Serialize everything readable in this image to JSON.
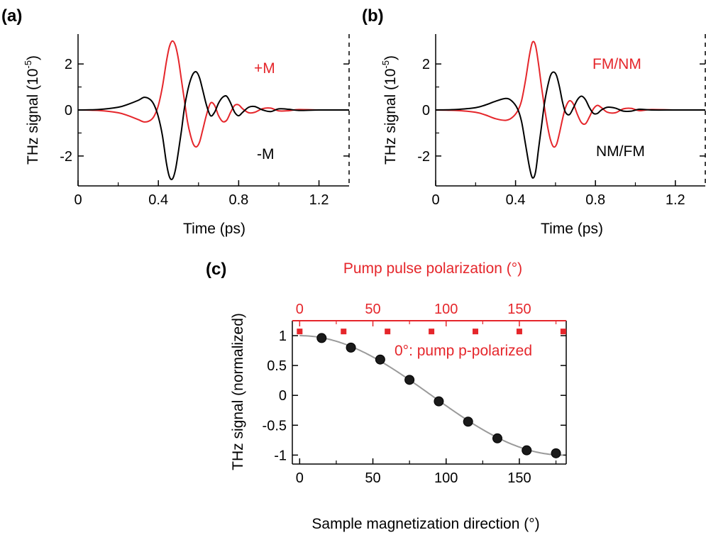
{
  "colors": {
    "black": "#000000",
    "red": "#e5262b",
    "fit": "#9a9a9a"
  },
  "panels": [
    {
      "label": "(a)"
    },
    {
      "label": "(b)"
    },
    {
      "label": "(c)"
    }
  ],
  "chart_data": [
    {
      "id": "a",
      "type": "line",
      "xlabel": "Time (ps)",
      "ylabel": "THz signal (10",
      "ylabel_exp": "-5",
      "ylabel_close": ")",
      "xlim": [
        0,
        1.35
      ],
      "ylim": [
        -3.3,
        3.3
      ],
      "xticks": [
        0,
        0.4,
        0.8,
        1.2
      ],
      "xtick_labels": [
        "0",
        "0.4",
        "0.8",
        "1.2"
      ],
      "yticks": [
        -2,
        0,
        2
      ],
      "ytick_labels": [
        "-2",
        "0",
        "2"
      ],
      "series": [
        {
          "name": "+M",
          "color": "red",
          "x": [
            0.0,
            0.1,
            0.2,
            0.25,
            0.3,
            0.33,
            0.36,
            0.38,
            0.4,
            0.42,
            0.44,
            0.455,
            0.47,
            0.485,
            0.5,
            0.515,
            0.53,
            0.545,
            0.56,
            0.575,
            0.59,
            0.605,
            0.62,
            0.64,
            0.66,
            0.68,
            0.7,
            0.72,
            0.74,
            0.76,
            0.78,
            0.8,
            0.82,
            0.85,
            0.88,
            0.92,
            0.96,
            1.0,
            1.05,
            1.1,
            1.2,
            1.35
          ],
          "y": [
            0.0,
            -0.02,
            -0.12,
            -0.25,
            -0.42,
            -0.52,
            -0.45,
            -0.25,
            0.2,
            1.0,
            2.1,
            2.75,
            3.0,
            2.8,
            2.2,
            1.3,
            0.4,
            -0.5,
            -1.1,
            -1.5,
            -1.6,
            -1.4,
            -0.9,
            -0.2,
            0.3,
            0.2,
            -0.25,
            -0.5,
            -0.45,
            -0.1,
            0.2,
            0.22,
            0.05,
            -0.12,
            -0.1,
            0.06,
            0.08,
            -0.04,
            -0.03,
            0.02,
            0.0,
            0.0
          ]
        },
        {
          "name": "-M",
          "color": "black",
          "x": [
            0.0,
            0.1,
            0.2,
            0.25,
            0.3,
            0.33,
            0.36,
            0.38,
            0.4,
            0.42,
            0.44,
            0.455,
            0.47,
            0.485,
            0.5,
            0.515,
            0.53,
            0.545,
            0.56,
            0.575,
            0.59,
            0.605,
            0.62,
            0.64,
            0.66,
            0.68,
            0.7,
            0.72,
            0.74,
            0.76,
            0.78,
            0.8,
            0.82,
            0.85,
            0.88,
            0.92,
            0.96,
            1.0,
            1.05,
            1.1,
            1.2,
            1.35
          ],
          "y": [
            0.0,
            0.02,
            0.12,
            0.25,
            0.42,
            0.55,
            0.45,
            0.2,
            -0.3,
            -1.1,
            -2.3,
            -2.9,
            -3.0,
            -2.6,
            -1.8,
            -0.9,
            0.1,
            0.8,
            1.3,
            1.6,
            1.65,
            1.4,
            0.9,
            0.2,
            -0.25,
            -0.1,
            0.3,
            0.55,
            0.6,
            0.3,
            -0.1,
            -0.25,
            -0.1,
            0.12,
            0.15,
            0.0,
            -0.07,
            0.05,
            0.03,
            -0.02,
            0.0,
            0.0
          ]
        }
      ],
      "annotations": [
        {
          "text": "+M",
          "color": "red"
        },
        {
          "text": "-M",
          "color": "black"
        }
      ]
    },
    {
      "id": "b",
      "type": "line",
      "xlabel": "Time (ps)",
      "ylabel": "THz signal (10",
      "ylabel_exp": "-5",
      "ylabel_close": ")",
      "xlim": [
        0,
        1.35
      ],
      "ylim": [
        -3.3,
        3.3
      ],
      "xticks": [
        0,
        0.4,
        0.8,
        1.2
      ],
      "xtick_labels": [
        "0",
        "0.4",
        "0.8",
        "1.2"
      ],
      "yticks": [
        -2,
        0,
        2
      ],
      "ytick_labels": [
        "-2",
        "0",
        "2"
      ],
      "series": [
        {
          "name": "FM/NM",
          "color": "red",
          "x": [
            0.0,
            0.1,
            0.2,
            0.25,
            0.3,
            0.35,
            0.38,
            0.41,
            0.43,
            0.45,
            0.47,
            0.485,
            0.5,
            0.515,
            0.53,
            0.545,
            0.56,
            0.575,
            0.59,
            0.605,
            0.62,
            0.635,
            0.65,
            0.67,
            0.69,
            0.71,
            0.73,
            0.75,
            0.77,
            0.79,
            0.81,
            0.83,
            0.86,
            0.9,
            0.94,
            0.98,
            1.02,
            1.08,
            1.2,
            1.35
          ],
          "y": [
            0.0,
            -0.02,
            -0.1,
            -0.22,
            -0.38,
            -0.45,
            -0.35,
            -0.05,
            0.4,
            1.3,
            2.4,
            2.95,
            2.8,
            2.0,
            1.0,
            0.1,
            -0.7,
            -1.3,
            -1.6,
            -1.5,
            -1.0,
            -0.4,
            0.1,
            0.4,
            0.25,
            -0.2,
            -0.55,
            -0.6,
            -0.3,
            0.05,
            0.2,
            0.1,
            -0.1,
            -0.12,
            0.05,
            0.07,
            -0.03,
            0.02,
            0.0,
            0.0
          ]
        },
        {
          "name": "NM/FM",
          "color": "black",
          "x": [
            0.0,
            0.1,
            0.2,
            0.25,
            0.3,
            0.35,
            0.38,
            0.41,
            0.43,
            0.45,
            0.47,
            0.485,
            0.5,
            0.515,
            0.53,
            0.545,
            0.56,
            0.575,
            0.59,
            0.605,
            0.62,
            0.635,
            0.65,
            0.67,
            0.69,
            0.71,
            0.73,
            0.75,
            0.77,
            0.79,
            0.81,
            0.83,
            0.86,
            0.9,
            0.94,
            0.98,
            1.02,
            1.08,
            1.2,
            1.35
          ],
          "y": [
            0.0,
            0.02,
            0.1,
            0.22,
            0.38,
            0.5,
            0.4,
            0.05,
            -0.5,
            -1.5,
            -2.5,
            -2.95,
            -2.7,
            -1.7,
            -0.7,
            0.3,
            1.0,
            1.5,
            1.65,
            1.5,
            1.0,
            0.35,
            -0.1,
            -0.2,
            0.1,
            0.45,
            0.6,
            0.45,
            0.1,
            -0.15,
            -0.15,
            0.0,
            0.12,
            0.08,
            -0.05,
            -0.05,
            0.03,
            0.0,
            0.0,
            0.0
          ]
        }
      ],
      "annotations": [
        {
          "text": "FM/NM",
          "color": "red"
        },
        {
          "text": "NM/FM",
          "color": "black"
        }
      ]
    },
    {
      "id": "c",
      "type": "scatter",
      "xlabel": "Sample magnetization direction (°)",
      "ylabel": "THz signal (normalized)",
      "top_xlabel": "Pump pulse polarization (°)",
      "xlim": [
        -5,
        182
      ],
      "ylim": [
        -1.15,
        1.25
      ],
      "xticks": [
        0,
        50,
        100,
        150
      ],
      "xtick_labels": [
        "0",
        "50",
        "100",
        "150"
      ],
      "top_xticks": [
        0,
        50,
        100,
        150
      ],
      "top_xtick_labels": [
        "0",
        "50",
        "100",
        "150"
      ],
      "yticks": [
        1,
        0.5,
        0,
        -0.5,
        -1
      ],
      "ytick_labels": [
        "1",
        "0.5",
        "0",
        "-0.5",
        "-1"
      ],
      "series": [
        {
          "name": "magnetization",
          "color": "black",
          "x": [
            15,
            35,
            55,
            75,
            95,
            115,
            135,
            155,
            175
          ],
          "y": [
            0.96,
            0.8,
            0.6,
            0.26,
            -0.1,
            -0.44,
            -0.72,
            -0.92,
            -0.97
          ]
        },
        {
          "name": "pump polarization",
          "color": "red",
          "x": [
            0,
            30,
            60,
            90,
            120,
            150,
            180
          ],
          "y": [
            1.07,
            1.07,
            1.07,
            1.07,
            1.07,
            1.07,
            1.07
          ]
        },
        {
          "name": "fit",
          "color": "fit",
          "function": "cos",
          "x_range": [
            0,
            180
          ]
        }
      ],
      "annotations": [
        {
          "text": "0°: pump p-polarized",
          "color": "red"
        }
      ]
    }
  ]
}
